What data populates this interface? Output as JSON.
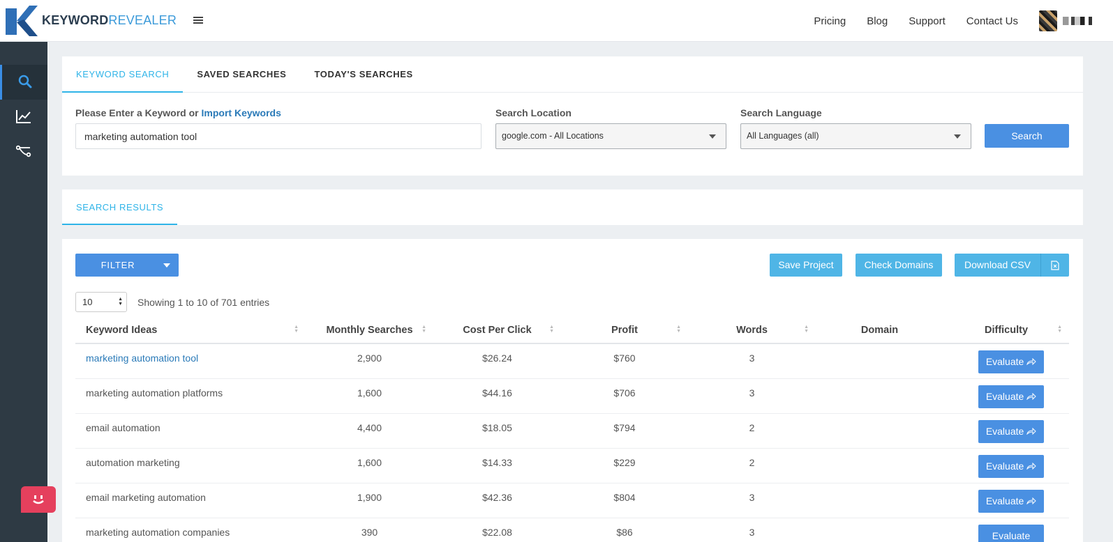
{
  "brand": {
    "bold": "KEYWORD",
    "light": "REVEALER",
    "mark_color": "#2f6fb6",
    "accent": "#3b9ad9"
  },
  "nav": {
    "links": [
      "Pricing",
      "Blog",
      "Support",
      "Contact Us"
    ]
  },
  "sidebar": {
    "items": [
      "search-icon",
      "trend-chart-icon",
      "network-icon"
    ]
  },
  "search_tabs": [
    "KEYWORD SEARCH",
    "SAVED SEARCHES",
    "TODAY'S SEARCHES"
  ],
  "form": {
    "keyword_label_prefix": "Please Enter a Keyword or",
    "import_link": "Import Keywords",
    "keyword_value": "marketing automation tool",
    "location_label": "Search Location",
    "location_value": "google.com - All Locations",
    "language_label": "Search Language",
    "language_value": "All Languages (all)",
    "search_button": "Search"
  },
  "results": {
    "tab": "SEARCH RESULTS",
    "filter_button": "FILTER",
    "save_project": "Save Project",
    "check_domains": "Check Domains",
    "download_csv": "Download CSV",
    "page_length": "10",
    "info": "Showing 1 to 10 of 701 entries",
    "columns": [
      "Keyword Ideas",
      "Monthly Searches",
      "Cost Per Click",
      "Profit",
      "Words",
      "Domain",
      "Difficulty"
    ],
    "evaluate_label": "Evaluate",
    "rows": [
      {
        "keyword": "marketing automation tool",
        "searches": "2,900",
        "cpc": "$26.24",
        "profit": "$760",
        "words": "3"
      },
      {
        "keyword": "marketing automation platforms",
        "searches": "1,600",
        "cpc": "$44.16",
        "profit": "$706",
        "words": "3"
      },
      {
        "keyword": "email automation",
        "searches": "4,400",
        "cpc": "$18.05",
        "profit": "$794",
        "words": "2"
      },
      {
        "keyword": "automation marketing",
        "searches": "1,600",
        "cpc": "$14.33",
        "profit": "$229",
        "words": "2"
      },
      {
        "keyword": "email marketing automation",
        "searches": "1,900",
        "cpc": "$42.36",
        "profit": "$804",
        "words": "3"
      },
      {
        "keyword": "marketing automation companies",
        "searches": "390",
        "cpc": "$22.08",
        "profit": "$86",
        "words": "3"
      }
    ]
  }
}
